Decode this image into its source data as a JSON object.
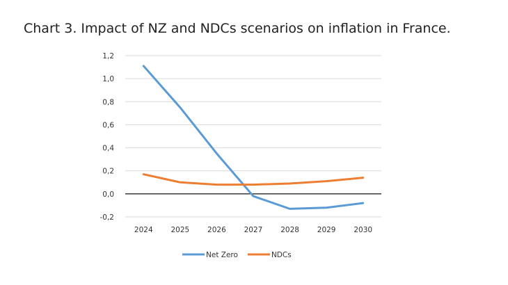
{
  "chart_data": {
    "type": "line",
    "title": "Chart 3. Impact of NZ and NDCs scenarios on inflation in France.",
    "xlabel": "",
    "ylabel": "",
    "x": [
      "2024",
      "2025",
      "2026",
      "2027",
      "2028",
      "2029",
      "2030"
    ],
    "ylim": [
      -0.2,
      1.2
    ],
    "yticks": [
      "1,2",
      "1,0",
      "0,8",
      "0,6",
      "0,4",
      "0,2",
      "0,0",
      "-0,2"
    ],
    "ytick_values": [
      1.2,
      1.0,
      0.8,
      0.6,
      0.4,
      0.2,
      0.0,
      -0.2
    ],
    "grid": true,
    "legend": "bottom-center",
    "series": [
      {
        "name": "Net Zero",
        "color": "#5b9bd5",
        "values": [
          1.11,
          0.75,
          0.35,
          -0.02,
          -0.13,
          -0.12,
          -0.08
        ]
      },
      {
        "name": "NDCs",
        "color": "#ed7d31",
        "values": [
          0.17,
          0.1,
          0.08,
          0.08,
          0.09,
          0.11,
          0.14
        ]
      }
    ]
  }
}
